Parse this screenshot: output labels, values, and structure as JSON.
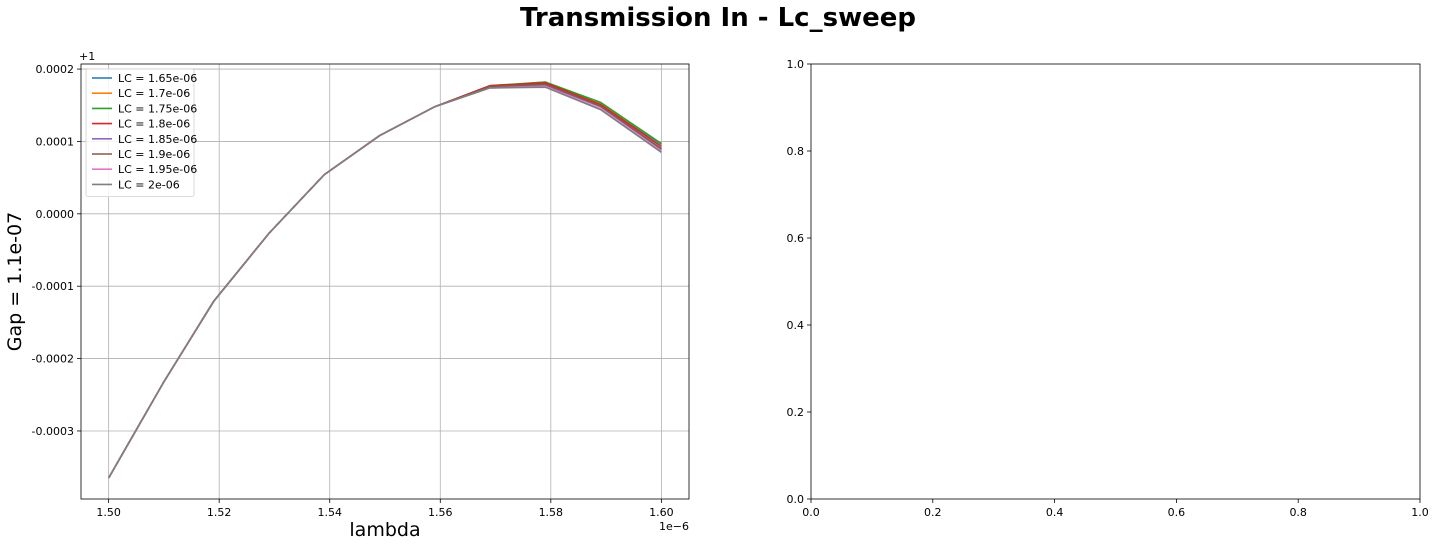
{
  "figure": {
    "title": "Transmission In - Lc_sweep"
  },
  "chart_data": [
    {
      "type": "line",
      "xlabel": "lambda",
      "ylabel": "Gap = 1.1e-07",
      "x_offset_text": "1e−6",
      "y_offset_text": "+1",
      "xlim": [
        1.495,
        1.605
      ],
      "ylim": [
        -0.000394,
        0.000207
      ],
      "xticks": [
        1.5,
        1.52,
        1.54,
        1.56,
        1.58,
        1.6
      ],
      "xtick_labels": [
        "1.50",
        "1.52",
        "1.54",
        "1.56",
        "1.58",
        "1.60"
      ],
      "yticks": [
        -0.0003,
        -0.0002,
        -0.0001,
        0.0,
        0.0001,
        0.0002
      ],
      "ytick_labels": [
        "-0.0003",
        "-0.0002",
        "-0.0001",
        "0.0000",
        "0.0001",
        "0.0002"
      ],
      "grid": true,
      "legend_position": "top-left",
      "x": [
        1.5,
        1.51,
        1.519,
        1.529,
        1.539,
        1.549,
        1.559,
        1.569,
        1.579,
        1.589,
        1.6
      ],
      "series": [
        {
          "name": "LC = 1.65e-06",
          "color": "#1f77b4",
          "values": [
            -0.000365,
            -0.000232,
            -0.000121,
            -2.7e-05,
            5.4e-05,
            0.000108,
            0.000148,
            0.000176,
            0.000181,
            0.000152,
            9.6e-05
          ]
        },
        {
          "name": "LC = 1.7e-06",
          "color": "#ff7f0e",
          "values": [
            -0.000365,
            -0.000232,
            -0.000121,
            -2.7e-05,
            5.4e-05,
            0.000108,
            0.000148,
            0.000176,
            0.000182,
            0.000153,
            9.7e-05
          ]
        },
        {
          "name": "LC = 1.75e-06",
          "color": "#2ca02c",
          "values": [
            -0.000365,
            -0.000232,
            -0.000121,
            -2.7e-05,
            5.4e-05,
            0.000108,
            0.000148,
            0.000177,
            0.000182,
            0.000154,
            9.7e-05
          ]
        },
        {
          "name": "LC = 1.8e-06",
          "color": "#d62728",
          "values": [
            -0.000365,
            -0.000232,
            -0.000121,
            -2.7e-05,
            5.4e-05,
            0.000108,
            0.000148,
            0.000177,
            0.000181,
            0.000151,
            9.3e-05
          ]
        },
        {
          "name": "LC = 1.85e-06",
          "color": "#9467bd",
          "values": [
            -0.000365,
            -0.000232,
            -0.000121,
            -2.7e-05,
            5.4e-05,
            0.000108,
            0.000148,
            0.000175,
            0.000178,
            0.000148,
            8.9e-05
          ]
        },
        {
          "name": "LC = 1.9e-06",
          "color": "#8c564b",
          "values": [
            -0.000365,
            -0.000232,
            -0.000121,
            -2.7e-05,
            5.4e-05,
            0.000108,
            0.000148,
            0.000176,
            0.000179,
            0.000149,
            9e-05
          ]
        },
        {
          "name": "LC = 1.95e-06",
          "color": "#e377c2",
          "values": [
            -0.000365,
            -0.000232,
            -0.000121,
            -2.7e-05,
            5.4e-05,
            0.000108,
            0.000148,
            0.000174,
            0.000176,
            0.000145,
            8.6e-05
          ]
        },
        {
          "name": "LC = 2e-06",
          "color": "#7f7f7f",
          "values": [
            -0.000365,
            -0.000232,
            -0.000121,
            -2.7e-05,
            5.4e-05,
            0.000108,
            0.000148,
            0.000174,
            0.000175,
            0.000144,
            8.5e-05
          ]
        }
      ]
    },
    {
      "type": "line",
      "xlim": [
        0,
        1
      ],
      "ylim": [
        0,
        1
      ],
      "xticks": [
        0.0,
        0.2,
        0.4,
        0.6,
        0.8,
        1.0
      ],
      "xtick_labels": [
        "0.0",
        "0.2",
        "0.4",
        "0.6",
        "0.8",
        "1.0"
      ],
      "yticks": [
        0.0,
        0.2,
        0.4,
        0.6,
        0.8,
        1.0
      ],
      "ytick_labels": [
        "0.0",
        "0.2",
        "0.4",
        "0.6",
        "0.8",
        "1.0"
      ],
      "grid": false,
      "series": []
    }
  ]
}
